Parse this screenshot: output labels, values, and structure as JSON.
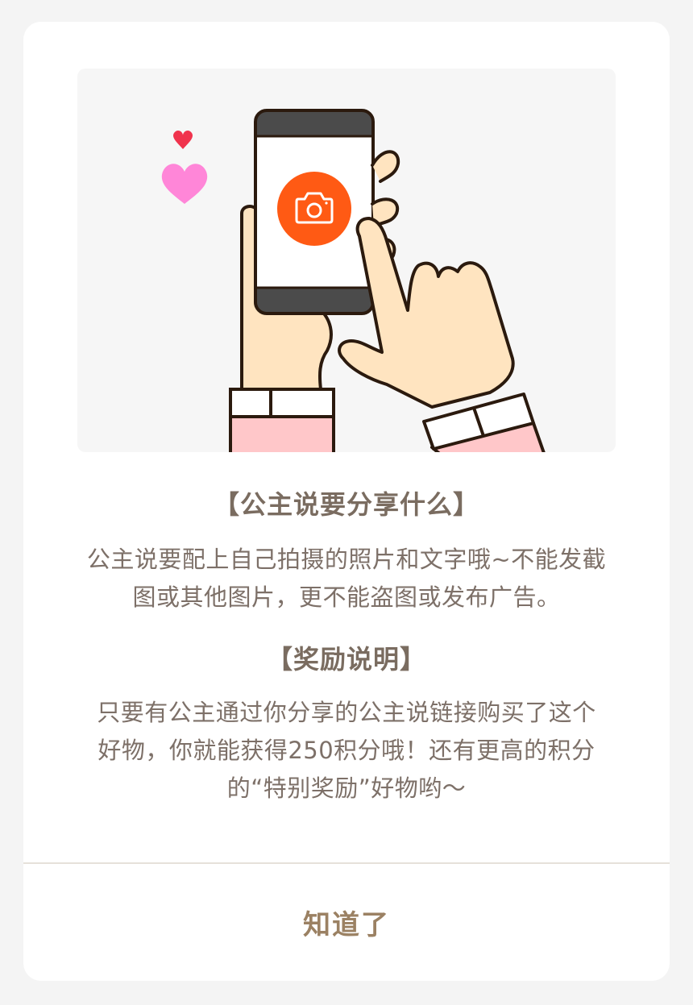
{
  "dialog": {
    "sections": [
      {
        "title": "【公主说要分享什么】",
        "lines": [
          "公主说要配上自己拍摄的照片和文字哦~不能发截",
          "图或其他图片，更不能盗图或发布广告。"
        ]
      },
      {
        "title": "【奖励说明】",
        "lines": [
          "只要有公主通过你分享的公主说链接购买了这个",
          "好物，你就能获得250积分哦！还有更高的积分",
          "的“特别奖励”好物哟～"
        ]
      }
    ],
    "confirm_label": "知道了"
  },
  "colors": {
    "title": "#7a6c60",
    "body": "#7d7068",
    "button": "#9b8163",
    "camera_accent": "#ff5a14",
    "heart_small": "#f0334d",
    "heart_large": "#ff86d8"
  }
}
